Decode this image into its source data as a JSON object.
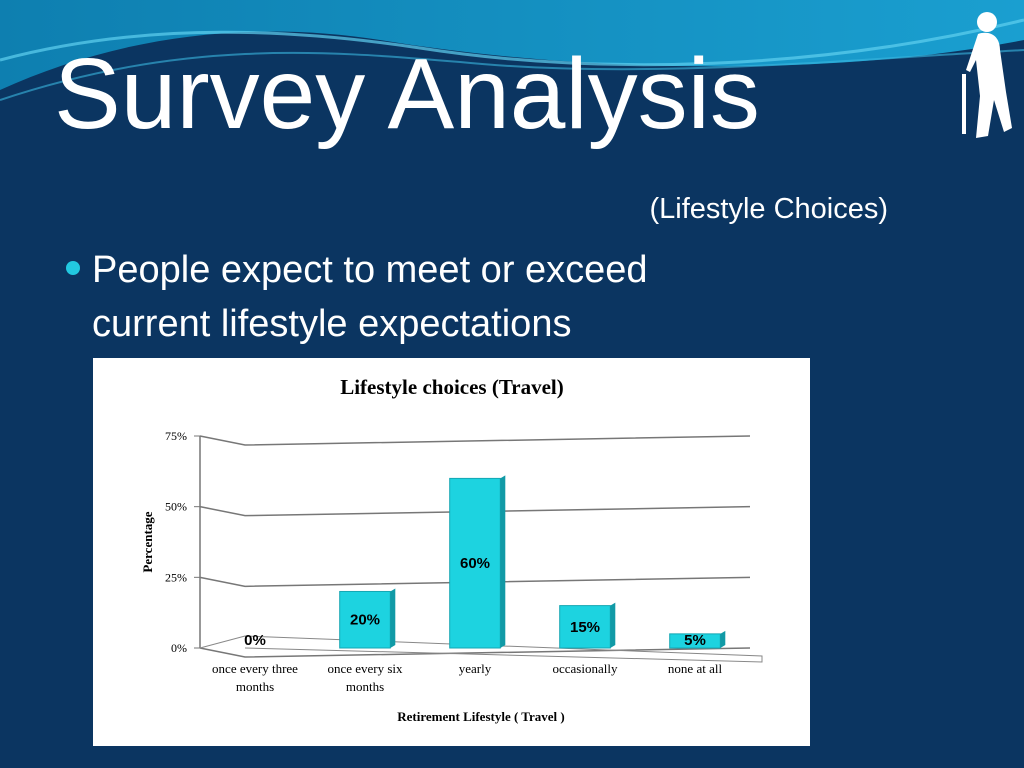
{
  "title": "Survey Analysis",
  "subtitle": "(Lifestyle Choices)",
  "bullets": [
    "People expect to meet or exceed",
    "current lifestyle expectations"
  ],
  "chart_data": {
    "type": "bar",
    "title": "Lifestyle choices (Travel)",
    "y_label": "Percentage",
    "x_label": "Retirement Lifestyle ( Travel )",
    "categories": [
      "once every three months",
      "once every six months",
      "yearly",
      "occasionally",
      "none at all"
    ],
    "values": [
      0,
      20,
      60,
      15,
      5
    ],
    "value_labels": [
      "0%",
      "20%",
      "60%",
      "15%",
      "5%"
    ],
    "color": "#1dd3e0",
    "ylim": [
      0,
      75
    ],
    "yticks": [
      {
        "value": 0,
        "label": "0%"
      },
      {
        "value": 25,
        "label": "25%"
      },
      {
        "value": 50,
        "label": "50%"
      },
      {
        "value": 75,
        "label": "75%"
      }
    ],
    "grid": true
  }
}
